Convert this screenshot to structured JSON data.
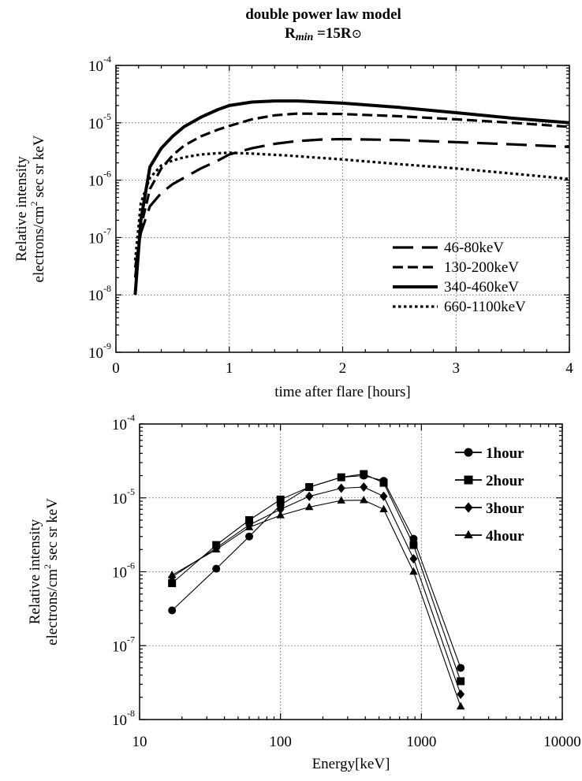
{
  "title": {
    "line1": "double power law model",
    "rmin_prefix": "R",
    "rmin_sub": "min",
    "rmin_value": " =15R",
    "rmin_symbol": "⊙"
  },
  "chart_data": [
    {
      "type": "line",
      "xlabel": "time after flare [hours]",
      "ylabel_line1": "Relative intensity",
      "ylabel_line2_prefix": "electrons/cm",
      "ylabel_line2_sup": "2",
      "ylabel_line2_suffix": " sec sr keV",
      "xlim": [
        0,
        4
      ],
      "ylim": [
        1e-09,
        0.0001
      ],
      "yscale": "log",
      "grid": true,
      "legend_position": "bottom-right",
      "x_ticks": [
        "0",
        "1",
        "2",
        "3",
        "4"
      ],
      "y_ticks": [
        {
          "base": "10",
          "exp": "-9",
          "value": 1e-09
        },
        {
          "base": "10",
          "exp": "-8",
          "value": 1e-08
        },
        {
          "base": "10",
          "exp": "-7",
          "value": 1e-07
        },
        {
          "base": "10",
          "exp": "-6",
          "value": 1e-06
        },
        {
          "base": "10",
          "exp": "-5",
          "value": 1e-05
        },
        {
          "base": "10",
          "exp": "-4",
          "value": 0.0001
        }
      ],
      "series": [
        {
          "name": "46-80keV",
          "style": "long-dash",
          "x": [
            0.17,
            0.22,
            0.3,
            0.4,
            0.5,
            0.6,
            0.75,
            0.9,
            1.0,
            1.2,
            1.4,
            1.6,
            1.8,
            2.0,
            2.5,
            3.0,
            3.5,
            4.0
          ],
          "y": [
            3e-08,
            1.2e-07,
            3.5e-07,
            6e-07,
            8.5e-07,
            1.1e-06,
            1.6e-06,
            2.2e-06,
            2.8e-06,
            3.6e-06,
            4.3e-06,
            4.8e-06,
            5.1e-06,
            5.2e-06,
            5e-06,
            4.6e-06,
            4.2e-06,
            3.8e-06
          ]
        },
        {
          "name": "130-200keV",
          "style": "dash",
          "x": [
            0.17,
            0.22,
            0.3,
            0.4,
            0.5,
            0.6,
            0.75,
            0.9,
            1.0,
            1.2,
            1.4,
            1.6,
            2.0,
            2.5,
            3.0,
            3.5,
            4.0
          ],
          "y": [
            2e-08,
            1.5e-07,
            7e-07,
            1.6e-06,
            2.7e-06,
            4e-06,
            5.8e-06,
            7.6e-06,
            8.8e-06,
            1.15e-05,
            1.35e-05,
            1.45e-05,
            1.42e-05,
            1.3e-05,
            1.15e-05,
            1e-05,
            8.5e-06
          ]
        },
        {
          "name": "340-460keV",
          "style": "solid",
          "x": [
            0.17,
            0.22,
            0.3,
            0.4,
            0.5,
            0.6,
            0.75,
            0.9,
            1.0,
            1.2,
            1.4,
            1.6,
            2.0,
            2.5,
            3.0,
            3.5,
            4.0
          ],
          "y": [
            1e-08,
            2e-07,
            1.7e-06,
            3.6e-06,
            5.8e-06,
            8.5e-06,
            1.25e-05,
            1.7e-05,
            2e-05,
            2.3e-05,
            2.4e-05,
            2.4e-05,
            2.2e-05,
            1.85e-05,
            1.5e-05,
            1.2e-05,
            1e-05
          ]
        },
        {
          "name": "660-1100keV",
          "style": "dot",
          "x": [
            0.17,
            0.22,
            0.3,
            0.4,
            0.5,
            0.6,
            0.75,
            0.9,
            1.0,
            1.2,
            1.5,
            2.0,
            2.5,
            3.0,
            3.5,
            4.0
          ],
          "y": [
            4e-08,
            4e-07,
            1.1e-06,
            1.8e-06,
            2.2e-06,
            2.5e-06,
            2.8e-06,
            2.95e-06,
            3e-06,
            2.9e-06,
            2.7e-06,
            2.3e-06,
            1.9e-06,
            1.6e-06,
            1.3e-06,
            1.05e-06
          ]
        }
      ]
    },
    {
      "type": "line",
      "markers": true,
      "xlabel": "Energy[keV]",
      "ylabel_line1": "Relative intensity",
      "ylabel_line2_prefix": "electrons/cm",
      "ylabel_line2_sup": "2",
      "ylabel_line2_suffix": " sec sr keV",
      "xscale": "log",
      "yscale": "log",
      "xlim": [
        10,
        10000
      ],
      "ylim": [
        1e-08,
        0.0001
      ],
      "grid": true,
      "legend_position": "top-right",
      "x_ticks": [
        {
          "label": "10",
          "value": 10
        },
        {
          "label": "100",
          "value": 100
        },
        {
          "label": "1000",
          "value": 1000
        },
        {
          "label": "10000",
          "value": 10000
        }
      ],
      "y_ticks": [
        {
          "base": "10",
          "exp": "-8",
          "value": 1e-08
        },
        {
          "base": "10",
          "exp": "-7",
          "value": 1e-07
        },
        {
          "base": "10",
          "exp": "-6",
          "value": 1e-06
        },
        {
          "base": "10",
          "exp": "-5",
          "value": 1e-05
        },
        {
          "base": "10",
          "exp": "-4",
          "value": 0.0001
        }
      ],
      "x": [
        17,
        35,
        60,
        100,
        160,
        270,
        390,
        540,
        880,
        1900
      ],
      "series": [
        {
          "name": "1hour",
          "marker": "circle",
          "y": [
            3e-07,
            1.1e-06,
            3e-06,
            8e-06,
            1.4e-05,
            1.9e-05,
            2e-05,
            1.7e-05,
            2.8e-06,
            5e-08
          ]
        },
        {
          "name": "2hour",
          "marker": "square",
          "y": [
            7e-07,
            2.3e-06,
            5e-06,
            9.5e-06,
            1.4e-05,
            1.9e-05,
            2.1e-05,
            1.6e-05,
            2.3e-06,
            3.3e-08
          ]
        },
        {
          "name": "3hour",
          "marker": "diamond",
          "y": [
            8.5e-07,
            2.1e-06,
            4.3e-06,
            7e-06,
            1.05e-05,
            1.35e-05,
            1.4e-05,
            1.05e-05,
            1.5e-06,
            2.2e-08
          ]
        },
        {
          "name": "4hour",
          "marker": "triangle",
          "y": [
            9e-07,
            2e-06,
            4e-06,
            5.8e-06,
            7.5e-06,
            9.2e-06,
            9.3e-06,
            7e-06,
            1e-06,
            1.5e-08
          ]
        }
      ]
    }
  ]
}
